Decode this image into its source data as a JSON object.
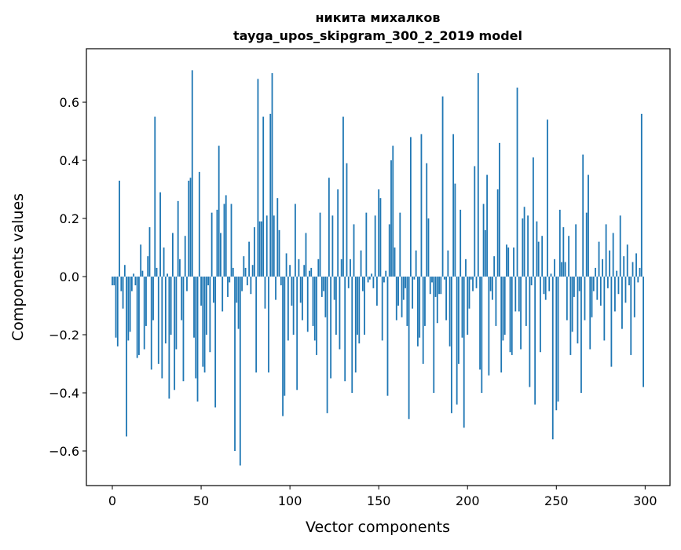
{
  "chart_data": {
    "type": "bar",
    "title": [
      "никита михалков",
      "tayga_upos_skipgram_300_2_2019 model"
    ],
    "xlabel": "Vector components",
    "ylabel": "Components values",
    "xlim": [
      -14.6,
      314
    ],
    "ylim": [
      -0.719,
      0.784
    ],
    "xticks": [
      0,
      50,
      100,
      150,
      200,
      250,
      300
    ],
    "xtick_labels": [
      "0",
      "50",
      "100",
      "150",
      "200",
      "250",
      "300"
    ],
    "yticks": [
      -0.6,
      -0.4,
      -0.2,
      0.0,
      0.2,
      0.4,
      0.6
    ],
    "ytick_labels": [
      "−0.6",
      "−0.4",
      "−0.2",
      "0.0",
      "0.2",
      "0.4",
      "0.6"
    ],
    "grid": false,
    "bar_color": "#1f77b4",
    "values": [
      -0.03,
      -0.03,
      -0.21,
      -0.24,
      0.33,
      -0.05,
      -0.11,
      0.04,
      -0.55,
      -0.22,
      -0.19,
      -0.05,
      0.01,
      -0.03,
      -0.28,
      -0.27,
      0.11,
      0.02,
      -0.25,
      -0.17,
      0.07,
      0.17,
      -0.32,
      -0.15,
      0.55,
      0.03,
      -0.3,
      0.29,
      -0.35,
      0.1,
      -0.23,
      0.01,
      -0.42,
      -0.2,
      0.15,
      -0.39,
      -0.25,
      0.26,
      0.06,
      -0.15,
      -0.36,
      0.14,
      -0.05,
      0.33,
      0.34,
      0.71,
      -0.21,
      -0.35,
      -0.43,
      0.36,
      -0.1,
      -0.31,
      -0.33,
      -0.2,
      -0.03,
      -0.26,
      0.22,
      -0.09,
      -0.45,
      0.23,
      0.45,
      0.15,
      -0.12,
      0.25,
      0.28,
      -0.07,
      -0.02,
      0.25,
      0.03,
      -0.6,
      -0.09,
      -0.18,
      -0.65,
      -0.05,
      0.07,
      0.03,
      -0.03,
      0.12,
      -0.06,
      0.04,
      0.17,
      -0.33,
      0.68,
      0.19,
      0.19,
      0.55,
      -0.11,
      0.21,
      -0.33,
      0.56,
      0.7,
      0.21,
      -0.08,
      0.27,
      0.16,
      -0.03,
      -0.48,
      -0.41,
      0.08,
      -0.22,
      0.04,
      -0.1,
      -0.2,
      0.25,
      -0.39,
      0.06,
      -0.09,
      -0.15,
      0.04,
      0.15,
      -0.19,
      0.02,
      0.03,
      -0.17,
      -0.22,
      -0.27,
      0.06,
      0.22,
      -0.07,
      -0.05,
      -0.14,
      -0.47,
      0.34,
      -0.35,
      0.21,
      -0.08,
      -0.2,
      0.3,
      -0.25,
      0.06,
      0.55,
      -0.36,
      0.39,
      -0.04,
      0.06,
      -0.4,
      0.18,
      -0.33,
      -0.2,
      -0.23,
      0.09,
      -0.05,
      -0.2,
      0.22,
      -0.02,
      -0.01,
      0.01,
      -0.04,
      0.21,
      -0.1,
      0.3,
      0.27,
      -0.22,
      -0.02,
      0.02,
      -0.41,
      0.18,
      0.4,
      0.45,
      0.1,
      -0.15,
      -0.1,
      0.22,
      -0.14,
      -0.08,
      -0.04,
      -0.17,
      -0.49,
      0.48,
      -0.11,
      -0.01,
      0.09,
      -0.24,
      -0.21,
      0.49,
      -0.3,
      -0.17,
      0.39,
      0.2,
      -0.06,
      -0.02,
      -0.4,
      -0.07,
      -0.16,
      -0.06,
      -0.06,
      0.62,
      -0.01,
      -0.15,
      0.09,
      -0.24,
      -0.47,
      0.49,
      0.32,
      -0.44,
      -0.3,
      0.23,
      -0.21,
      -0.52,
      0.06,
      -0.2,
      -0.11,
      -0.01,
      -0.05,
      0.38,
      -0.04,
      0.7,
      -0.32,
      -0.4,
      0.25,
      0.16,
      0.35,
      -0.34,
      -0.05,
      -0.08,
      0.07,
      -0.17,
      0.3,
      0.46,
      -0.33,
      -0.22,
      -0.2,
      0.11,
      0.1,
      -0.26,
      -0.27,
      0.1,
      -0.12,
      0.65,
      -0.12,
      -0.25,
      0.2,
      0.24,
      -0.17,
      0.21,
      -0.38,
      -0.03,
      0.41,
      -0.44,
      0.19,
      0.12,
      -0.26,
      0.14,
      -0.06,
      -0.08,
      0.54,
      -0.05,
      0.01,
      -0.56,
      0.06,
      -0.46,
      -0.43,
      0.23,
      0.05,
      0.17,
      0.05,
      -0.15,
      0.14,
      -0.27,
      -0.19,
      -0.07,
      0.18,
      -0.23,
      -0.05,
      -0.4,
      0.42,
      -0.15,
      0.22,
      0.35,
      -0.25,
      -0.14,
      -0.05,
      0.03,
      -0.08,
      0.12,
      -0.1,
      0.06,
      -0.22,
      0.18,
      -0.04,
      0.09,
      -0.31,
      0.15,
      -0.12,
      0.02,
      -0.06,
      0.21,
      -0.18,
      0.07,
      -0.09,
      0.11,
      -0.03,
      -0.27,
      0.05,
      -0.14,
      0.08,
      -0.02,
      0.03,
      0.56,
      -0.38
    ]
  }
}
